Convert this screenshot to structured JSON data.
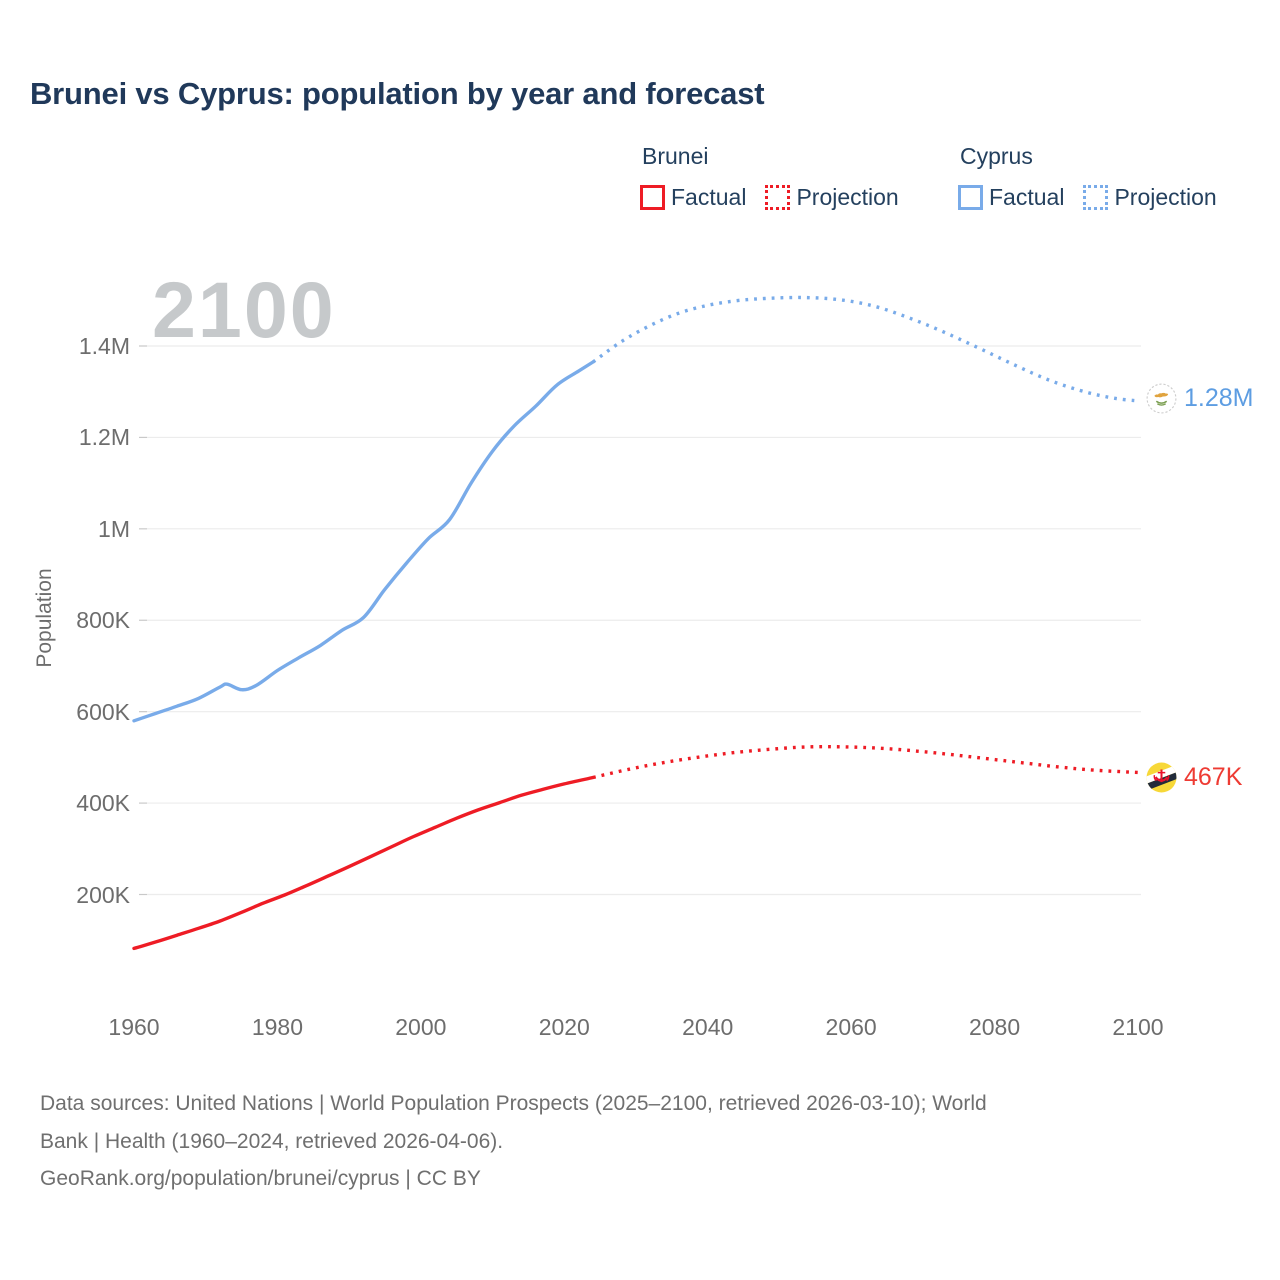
{
  "title": "Brunei vs Cyprus: population by year and forecast",
  "watermark": "2100",
  "legend": {
    "groups": [
      {
        "name": "Brunei",
        "color": "#ee1c25",
        "items": [
          {
            "label": "Factual",
            "style": "solid"
          },
          {
            "label": "Projection",
            "style": "dotted"
          }
        ]
      },
      {
        "name": "Cyprus",
        "color": "#79abe9",
        "items": [
          {
            "label": "Factual",
            "style": "solid"
          },
          {
            "label": "Projection",
            "style": "dotted"
          }
        ]
      }
    ]
  },
  "chart_data": {
    "type": "line",
    "title": "Brunei vs Cyprus: population by year and forecast",
    "xlabel": "",
    "ylabel": "Population",
    "x_ticks": [
      1960,
      1980,
      2000,
      2020,
      2040,
      2060,
      2080,
      2100
    ],
    "y_ticks": [
      {
        "value": 200000,
        "label": "200K"
      },
      {
        "value": 400000,
        "label": "400K"
      },
      {
        "value": 600000,
        "label": "600K"
      },
      {
        "value": 800000,
        "label": "800K"
      },
      {
        "value": 1000000,
        "label": "1M"
      },
      {
        "value": 1200000,
        "label": "1.2M"
      },
      {
        "value": 1400000,
        "label": "1.4M"
      }
    ],
    "xlim": [
      1960,
      2100
    ],
    "ylim": [
      0,
      1550000
    ],
    "grid": "horizontal-only",
    "legend_position": "top-right",
    "series": [
      {
        "name": "Cyprus Factual",
        "color": "#79abe9",
        "style": "solid",
        "points": [
          [
            1960,
            580000
          ],
          [
            1963,
            596000
          ],
          [
            1966,
            612000
          ],
          [
            1969,
            629000
          ],
          [
            1972,
            654000
          ],
          [
            1973,
            660000
          ],
          [
            1975,
            648000
          ],
          [
            1977,
            657000
          ],
          [
            1980,
            690000
          ],
          [
            1983,
            718000
          ],
          [
            1986,
            745000
          ],
          [
            1989,
            778000
          ],
          [
            1992,
            806000
          ],
          [
            1995,
            868000
          ],
          [
            1998,
            925000
          ],
          [
            2001,
            978000
          ],
          [
            2004,
            1020000
          ],
          [
            2007,
            1100000
          ],
          [
            2010,
            1170000
          ],
          [
            2013,
            1225000
          ],
          [
            2016,
            1268000
          ],
          [
            2019,
            1315000
          ],
          [
            2022,
            1345000
          ],
          [
            2024,
            1365000
          ]
        ]
      },
      {
        "name": "Cyprus Projection",
        "color": "#79abe9",
        "style": "dotted",
        "points": [
          [
            2024,
            1365000
          ],
          [
            2028,
            1410000
          ],
          [
            2032,
            1445000
          ],
          [
            2036,
            1472000
          ],
          [
            2040,
            1489000
          ],
          [
            2044,
            1499000
          ],
          [
            2048,
            1504000
          ],
          [
            2053,
            1506000
          ],
          [
            2058,
            1502000
          ],
          [
            2063,
            1488000
          ],
          [
            2068,
            1462000
          ],
          [
            2073,
            1430000
          ],
          [
            2078,
            1394000
          ],
          [
            2083,
            1357000
          ],
          [
            2088,
            1323000
          ],
          [
            2093,
            1298000
          ],
          [
            2097,
            1285000
          ],
          [
            2100,
            1280000
          ]
        ]
      },
      {
        "name": "Brunei Factual",
        "color": "#ee1c25",
        "style": "solid",
        "points": [
          [
            1960,
            82000
          ],
          [
            1963,
            96000
          ],
          [
            1966,
            111000
          ],
          [
            1969,
            126000
          ],
          [
            1972,
            142000
          ],
          [
            1975,
            161000
          ],
          [
            1978,
            181000
          ],
          [
            1981,
            199000
          ],
          [
            1984,
            219000
          ],
          [
            1987,
            240000
          ],
          [
            1990,
            261000
          ],
          [
            1993,
            283000
          ],
          [
            1996,
            305000
          ],
          [
            1999,
            327000
          ],
          [
            2002,
            347000
          ],
          [
            2005,
            367000
          ],
          [
            2008,
            385000
          ],
          [
            2011,
            401000
          ],
          [
            2014,
            417000
          ],
          [
            2017,
            430000
          ],
          [
            2020,
            442000
          ],
          [
            2024,
            456000
          ]
        ]
      },
      {
        "name": "Brunei Projection",
        "color": "#ee1c25",
        "style": "dotted",
        "points": [
          [
            2024,
            456000
          ],
          [
            2029,
            474000
          ],
          [
            2034,
            489000
          ],
          [
            2039,
            501000
          ],
          [
            2044,
            511000
          ],
          [
            2049,
            518000
          ],
          [
            2054,
            523000
          ],
          [
            2059,
            523000
          ],
          [
            2064,
            520000
          ],
          [
            2069,
            514000
          ],
          [
            2074,
            506000
          ],
          [
            2079,
            497000
          ],
          [
            2084,
            488000
          ],
          [
            2089,
            479000
          ],
          [
            2094,
            472000
          ],
          [
            2100,
            467000
          ]
        ]
      }
    ]
  },
  "end_labels": {
    "cyprus": {
      "text": "1.28M",
      "color": "#5d9de2"
    },
    "brunei": {
      "text": "467K",
      "color": "#ee3b33"
    }
  },
  "footer": {
    "lines": [
      "Data sources: United Nations | World Population Prospects (2025–2100, retrieved 2026-03-10); World",
      "Bank | Health (1960–2024, retrieved 2026-04-06).",
      "GeoRank.org/population/brunei/cyprus | CC BY"
    ]
  }
}
